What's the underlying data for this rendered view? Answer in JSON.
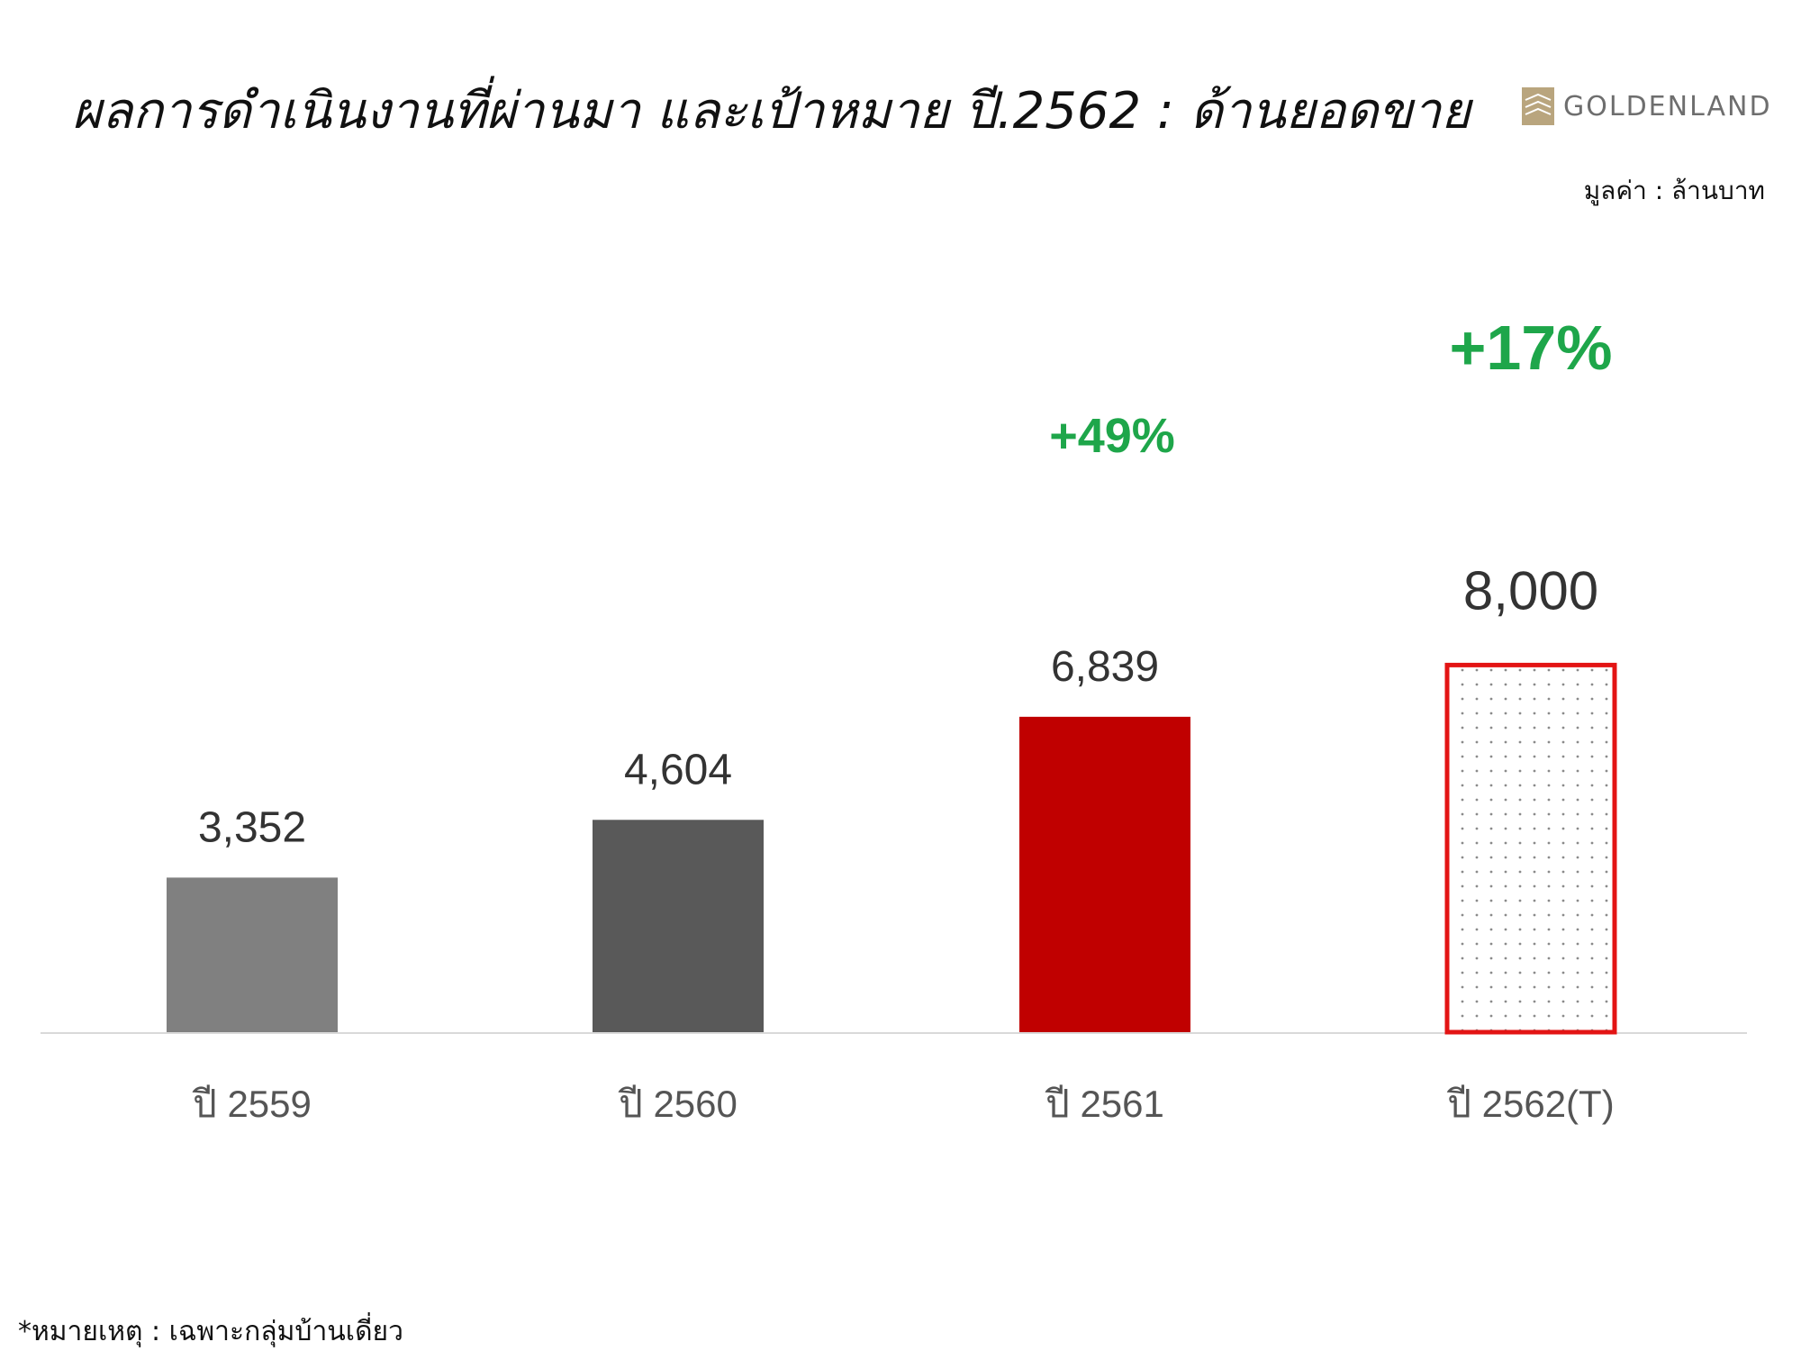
{
  "title": "ผลการดำเนินงานที่ผ่านมา และเป้าหมาย ปี.2562 : ด้านยอดขาย",
  "logo": {
    "text": "GOLDENLAND",
    "mark_color": "#b9a57e"
  },
  "unit_label": "มูลค่า : ล้านบาท",
  "footnote": "*หมายเหตุ : เฉพาะกลุ่มบ้านเดี่ยว",
  "chart_data": {
    "type": "bar",
    "categories": [
      "ปี 2559",
      "ปี 2560",
      "ปี 2561",
      "ปี 2562(T)"
    ],
    "values": [
      3352,
      4604,
      6839,
      8000
    ],
    "value_labels": [
      "3,352",
      "4,604",
      "6,839",
      "8,000"
    ],
    "growth_labels": [
      "",
      "",
      "+49%",
      "+17%"
    ],
    "bar_colors": [
      "#808080",
      "#595959",
      "#c00000",
      "target"
    ],
    "target_style": {
      "border": "#e31414",
      "fill": "#ffffff",
      "dots": "#8a8a8a"
    },
    "growth_color": "#1ea64a",
    "ylim": [
      0,
      10000
    ],
    "grid": false,
    "xlabel": "",
    "ylabel": ""
  }
}
